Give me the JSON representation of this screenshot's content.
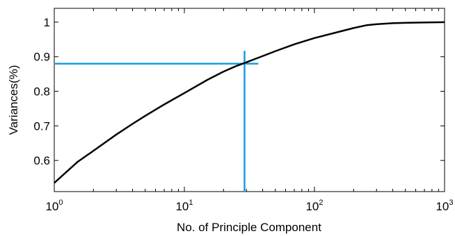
{
  "chart_data": {
    "type": "line",
    "title": "",
    "xlabel": "No. of Principle Component",
    "ylabel": "Variances(%)",
    "xscale": "log",
    "xlim": [
      1,
      1000
    ],
    "ylim": [
      0.51,
      1.04
    ],
    "x_ticks": [
      {
        "value": 1,
        "base": "10",
        "exp": "0"
      },
      {
        "value": 10,
        "base": "10",
        "exp": "1"
      },
      {
        "value": 100,
        "base": "10",
        "exp": "2"
      },
      {
        "value": 1000,
        "base": "10",
        "exp": "3"
      }
    ],
    "y_ticks": [
      {
        "value": 0.6,
        "label": "0.6"
      },
      {
        "value": 0.7,
        "label": "0.7"
      },
      {
        "value": 0.8,
        "label": "0.8"
      },
      {
        "value": 0.9,
        "label": "0.9"
      },
      {
        "value": 1.0,
        "label": "1"
      }
    ],
    "grid": false,
    "series": [
      {
        "color": "#000000",
        "x": [
          1,
          1.5,
          2,
          3,
          4,
          5,
          7,
          10,
          15,
          20,
          25,
          30,
          40,
          50,
          70,
          100,
          150,
          200,
          250,
          300,
          400,
          500,
          700,
          1000
        ],
        "y": [
          0.535,
          0.595,
          0.628,
          0.675,
          0.706,
          0.729,
          0.762,
          0.795,
          0.833,
          0.857,
          0.873,
          0.884,
          0.902,
          0.916,
          0.936,
          0.954,
          0.971,
          0.983,
          0.991,
          0.994,
          0.997,
          0.998,
          0.999,
          1.0
        ]
      }
    ],
    "reference_lines": {
      "color": "#1a9be0",
      "horizontal": {
        "y": 0.88,
        "x_from": 1,
        "x_to": 37
      },
      "vertical": {
        "x": 29,
        "y_from": 0.51,
        "y_to": 0.917
      }
    }
  }
}
